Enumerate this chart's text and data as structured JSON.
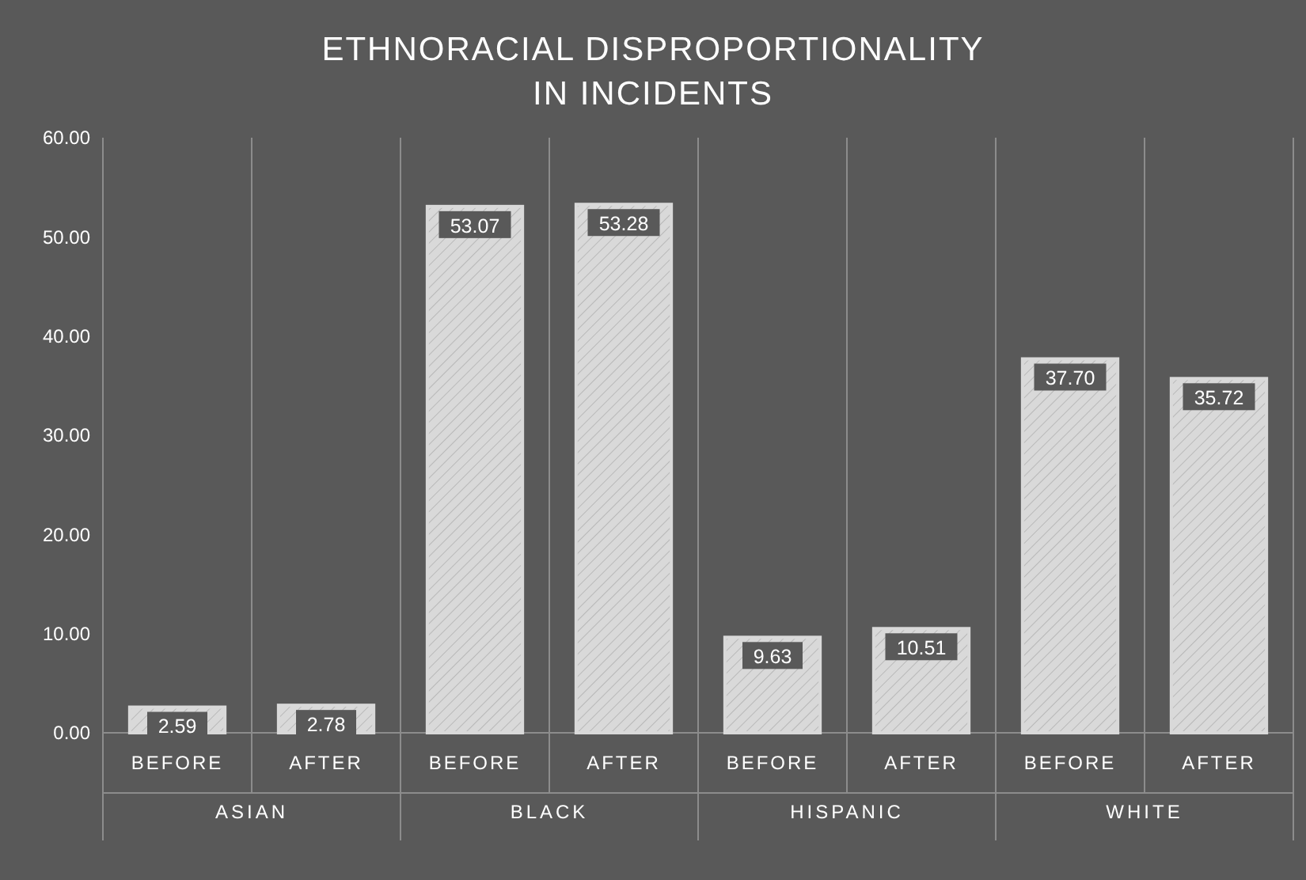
{
  "chart_data": {
    "type": "bar",
    "title": "ETHNORACIAL DISPROPORTIONALITY IN INCIDENTS",
    "categories": [
      "BEFORE",
      "AFTER",
      "BEFORE",
      "AFTER",
      "BEFORE",
      "AFTER",
      "BEFORE",
      "AFTER"
    ],
    "values": [
      2.59,
      2.78,
      53.07,
      53.28,
      9.63,
      10.51,
      37.7,
      35.72
    ],
    "value_labels": [
      "2.59",
      "2.78",
      "53.07",
      "53.28",
      "9.63",
      "10.51",
      "37.70",
      "35.72"
    ],
    "color": "#d9d9d9",
    "annotations": [
      "ASIAN",
      "BLACK",
      "HISPANIC",
      "WHITE"
    ],
    "ylim": [
      0,
      60
    ],
    "yticks": [
      {
        "value": 0,
        "label": "0.00"
      },
      {
        "value": 10,
        "label": "10.00"
      },
      {
        "value": 20,
        "label": "20.00"
      },
      {
        "value": 30,
        "label": "30.00"
      },
      {
        "value": 40,
        "label": "40.00"
      },
      {
        "value": 50,
        "label": "50.00"
      },
      {
        "value": 60,
        "label": "60.00"
      }
    ],
    "grid": false
  }
}
